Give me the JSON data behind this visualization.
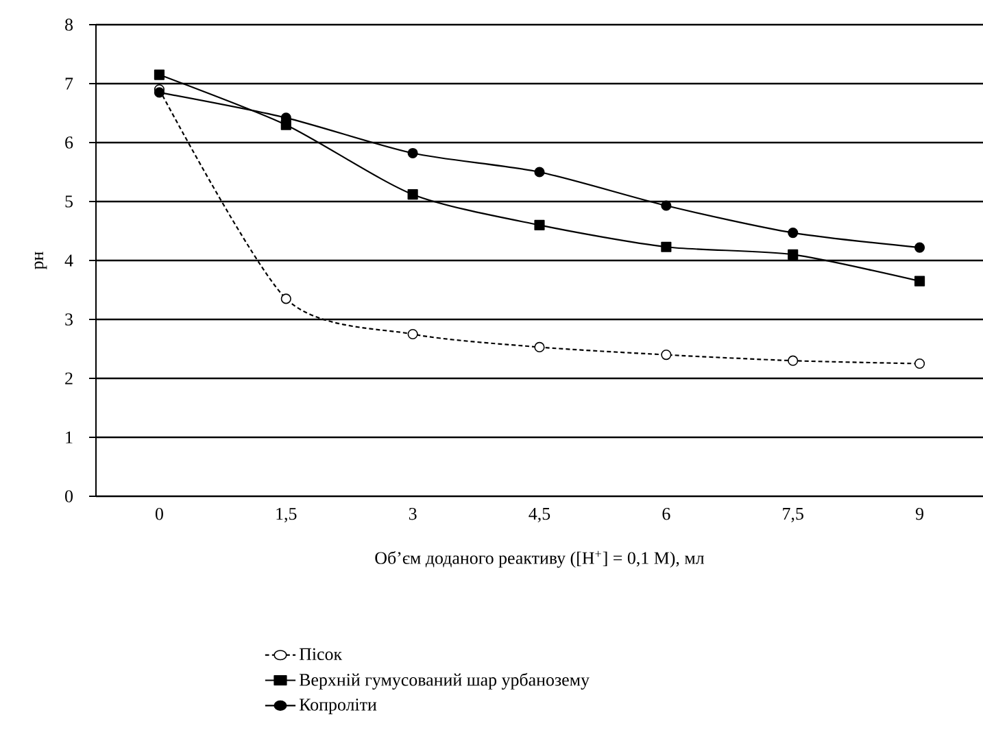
{
  "chart_data": {
    "type": "line",
    "xlabel": "Об’єм доданого реактиву ([H$^{+}$] = 0,1 М), мл",
    "ylabel": "рн",
    "categories": [
      "0",
      "1,5",
      "3",
      "4,5",
      "6",
      "7,5",
      "9"
    ],
    "series": [
      {
        "name": "Пісок",
        "color": "#000000",
        "marker": "circle",
        "colors": [
          "#ffffff",
          "#ffffff",
          "#ffffff",
          "#ffffff",
          "#ffffff",
          "#ffffff",
          "#ffffff"
        ],
        "line_style": "dashed",
        "values": [
          6.9,
          3.35,
          2.75,
          2.53,
          2.4,
          2.3,
          2.25
        ]
      },
      {
        "name": "Верхній гумусований шар урбанозему",
        "color": "#000000",
        "marker": "square",
        "line_style": "solid",
        "values": [
          7.15,
          6.3,
          5.12,
          4.6,
          4.23,
          4.1,
          3.65
        ]
      },
      {
        "name": "Копроліти",
        "color": "#000000",
        "marker": "circle",
        "line_style": "solid",
        "values": [
          6.85,
          6.42,
          5.82,
          5.5,
          4.93,
          4.47,
          4.22
        ]
      }
    ],
    "ylim": [
      0,
      8
    ],
    "yticks": [
      0,
      1,
      2,
      3,
      4,
      5,
      6,
      7,
      8
    ],
    "grid": "y",
    "legend": "bottom"
  }
}
